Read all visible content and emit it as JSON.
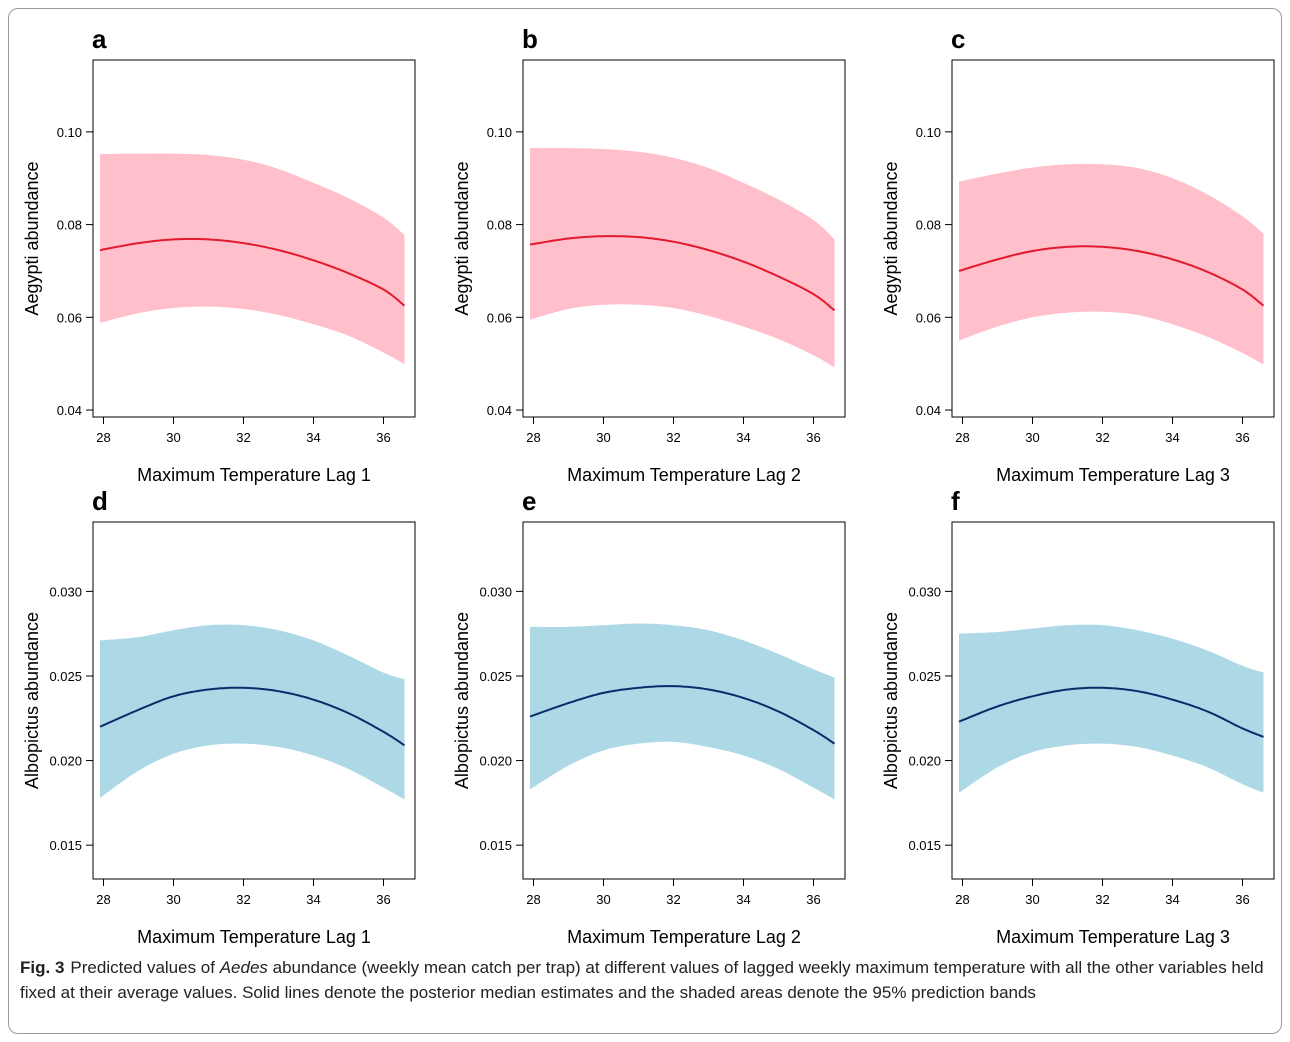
{
  "chart_data": [
    {
      "panel": "a",
      "type": "line",
      "xlabel": "Maximum Temperature Lag 1",
      "ylabel": "Aegypti abundance",
      "xticks": [
        28,
        30,
        32,
        34,
        36
      ],
      "yticks": [
        "0.04",
        "0.06",
        "0.08",
        "0.10"
      ],
      "xlim": [
        27.7,
        36.9
      ],
      "ylim": [
        0.0385,
        0.1155
      ],
      "colors": {
        "line": "#e3192c",
        "band": "#ffc0cb"
      },
      "x": [
        27.9,
        29.0,
        30.0,
        31.0,
        32.0,
        33.0,
        34.0,
        35.0,
        36.0,
        36.6
      ],
      "y": [
        0.0745,
        0.076,
        0.0768,
        0.0768,
        0.076,
        0.0745,
        0.0723,
        0.0695,
        0.066,
        0.0625
      ],
      "lower": [
        0.0588,
        0.0609,
        0.062,
        0.0623,
        0.0618,
        0.0605,
        0.0585,
        0.056,
        0.0524,
        0.0499
      ],
      "upper": [
        0.0952,
        0.0953,
        0.0953,
        0.095,
        0.094,
        0.092,
        0.089,
        0.0857,
        0.0815,
        0.0778
      ]
    },
    {
      "panel": "b",
      "type": "line",
      "xlabel": "Maximum Temperature Lag 2",
      "ylabel": "Aegypti abundance",
      "xticks": [
        28,
        30,
        32,
        34,
        36
      ],
      "yticks": [
        "0.04",
        "0.06",
        "0.08",
        "0.10"
      ],
      "xlim": [
        27.7,
        36.9
      ],
      "ylim": [
        0.0385,
        0.1155
      ],
      "colors": {
        "line": "#e3192c",
        "band": "#ffc0cb"
      },
      "x": [
        27.9,
        29.0,
        30.0,
        31.0,
        32.0,
        33.0,
        34.0,
        35.0,
        36.0,
        36.6
      ],
      "y": [
        0.0757,
        0.077,
        0.0775,
        0.0773,
        0.0763,
        0.0745,
        0.072,
        0.0688,
        0.065,
        0.0615
      ],
      "lower": [
        0.0595,
        0.0618,
        0.0627,
        0.0627,
        0.062,
        0.0603,
        0.058,
        0.0553,
        0.0518,
        0.0492
      ],
      "upper": [
        0.0965,
        0.0965,
        0.0963,
        0.0957,
        0.0944,
        0.0922,
        0.089,
        0.0854,
        0.081,
        0.0768
      ]
    },
    {
      "panel": "c",
      "type": "line",
      "xlabel": "Maximum Temperature Lag 3",
      "ylabel": "Aegypti abundance",
      "xticks": [
        28,
        30,
        32,
        34,
        36
      ],
      "yticks": [
        "0.04",
        "0.06",
        "0.08",
        "0.10"
      ],
      "xlim": [
        27.7,
        36.9
      ],
      "ylim": [
        0.0385,
        0.1155
      ],
      "colors": {
        "line": "#e3192c",
        "band": "#ffc0cb"
      },
      "x": [
        27.9,
        29.0,
        30.0,
        31.0,
        32.0,
        33.0,
        34.0,
        35.0,
        36.0,
        36.6
      ],
      "y": [
        0.07,
        0.0725,
        0.0743,
        0.0752,
        0.0752,
        0.0743,
        0.0725,
        0.0698,
        0.066,
        0.0625
      ],
      "lower": [
        0.055,
        0.058,
        0.06,
        0.061,
        0.0612,
        0.0605,
        0.0585,
        0.0558,
        0.0523,
        0.0498
      ],
      "upper": [
        0.0893,
        0.091,
        0.0923,
        0.093,
        0.093,
        0.0922,
        0.09,
        0.0865,
        0.0818,
        0.078
      ]
    },
    {
      "panel": "d",
      "type": "line",
      "xlabel": "Maximum Temperature Lag 1",
      "ylabel": "Albopictus abundance",
      "xticks": [
        28,
        30,
        32,
        34,
        36
      ],
      "yticks": [
        "0.015",
        "0.020",
        "0.025",
        "0.030"
      ],
      "xlim": [
        27.7,
        36.9
      ],
      "ylim": [
        0.013,
        0.0341
      ],
      "colors": {
        "line": "#0d2a6b",
        "band": "#add8e6"
      },
      "x": [
        27.9,
        29.0,
        30.0,
        31.0,
        32.0,
        33.0,
        34.0,
        35.0,
        36.0,
        36.6
      ],
      "y": [
        0.022,
        0.023,
        0.0238,
        0.0242,
        0.0243,
        0.0241,
        0.0236,
        0.0228,
        0.0217,
        0.0209
      ],
      "lower": [
        0.0178,
        0.0194,
        0.0204,
        0.0209,
        0.021,
        0.0208,
        0.0203,
        0.0195,
        0.0184,
        0.0177
      ],
      "upper": [
        0.0271,
        0.0273,
        0.0277,
        0.028,
        0.028,
        0.0277,
        0.0271,
        0.0262,
        0.0252,
        0.0248
      ]
    },
    {
      "panel": "e",
      "type": "line",
      "xlabel": "Maximum Temperature Lag 2",
      "ylabel": "Albopictus abundance",
      "xticks": [
        28,
        30,
        32,
        34,
        36
      ],
      "yticks": [
        "0.015",
        "0.020",
        "0.025",
        "0.030"
      ],
      "xlim": [
        27.7,
        36.9
      ],
      "ylim": [
        0.013,
        0.0341
      ],
      "colors": {
        "line": "#0d2a6b",
        "band": "#add8e6"
      },
      "x": [
        27.9,
        29.0,
        30.0,
        31.0,
        32.0,
        33.0,
        34.0,
        35.0,
        36.0,
        36.6
      ],
      "y": [
        0.0226,
        0.0234,
        0.024,
        0.0243,
        0.0244,
        0.0242,
        0.0237,
        0.0229,
        0.0218,
        0.021
      ],
      "lower": [
        0.0183,
        0.0197,
        0.0206,
        0.021,
        0.0211,
        0.0208,
        0.0203,
        0.0195,
        0.0184,
        0.0177
      ],
      "upper": [
        0.0279,
        0.0279,
        0.028,
        0.0281,
        0.028,
        0.0277,
        0.0271,
        0.0263,
        0.0254,
        0.0249
      ]
    },
    {
      "panel": "f",
      "type": "line",
      "xlabel": "Maximum Temperature Lag 3",
      "ylabel": "Albopictus abundance",
      "xticks": [
        28,
        30,
        32,
        34,
        36
      ],
      "yticks": [
        "0.015",
        "0.020",
        "0.025",
        "0.030"
      ],
      "xlim": [
        27.7,
        36.9
      ],
      "ylim": [
        0.013,
        0.0341
      ],
      "colors": {
        "line": "#0d2a6b",
        "band": "#add8e6"
      },
      "x": [
        27.9,
        29.0,
        30.0,
        31.0,
        32.0,
        33.0,
        34.0,
        35.0,
        36.0,
        36.6
      ],
      "y": [
        0.0223,
        0.0232,
        0.0238,
        0.0242,
        0.0243,
        0.0241,
        0.0236,
        0.0229,
        0.0219,
        0.0214
      ],
      "lower": [
        0.0181,
        0.0196,
        0.0205,
        0.0209,
        0.021,
        0.0208,
        0.0203,
        0.0196,
        0.0186,
        0.0181
      ],
      "upper": [
        0.0275,
        0.0276,
        0.0278,
        0.028,
        0.028,
        0.0277,
        0.0272,
        0.0265,
        0.0256,
        0.0252
      ]
    }
  ],
  "caption": {
    "label": "Fig. 3",
    "text_before": "Predicted values of ",
    "text_italic": "Aedes",
    "text_after": " abundance (weekly mean catch per trap) at different values of lagged weekly maximum temperature with all the other variables held fixed at their average values. Solid lines denote the posterior median estimates and the shaded areas denote the 95% prediction bands"
  }
}
